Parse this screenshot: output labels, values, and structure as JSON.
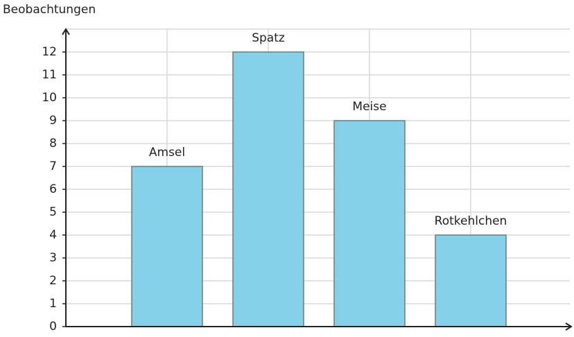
{
  "chart_data": {
    "type": "bar",
    "y_label": "Beobachtungen",
    "categories": [
      "Amsel",
      "Spatz",
      "Meise",
      "Rotkehlchen"
    ],
    "values": [
      7,
      12,
      9,
      4
    ],
    "color": "#7ecfe8",
    "ylim": [
      0,
      13
    ],
    "yticks": [
      0,
      1,
      2,
      3,
      4,
      5,
      6,
      7,
      8,
      9,
      10,
      11,
      12
    ],
    "grid": true
  }
}
